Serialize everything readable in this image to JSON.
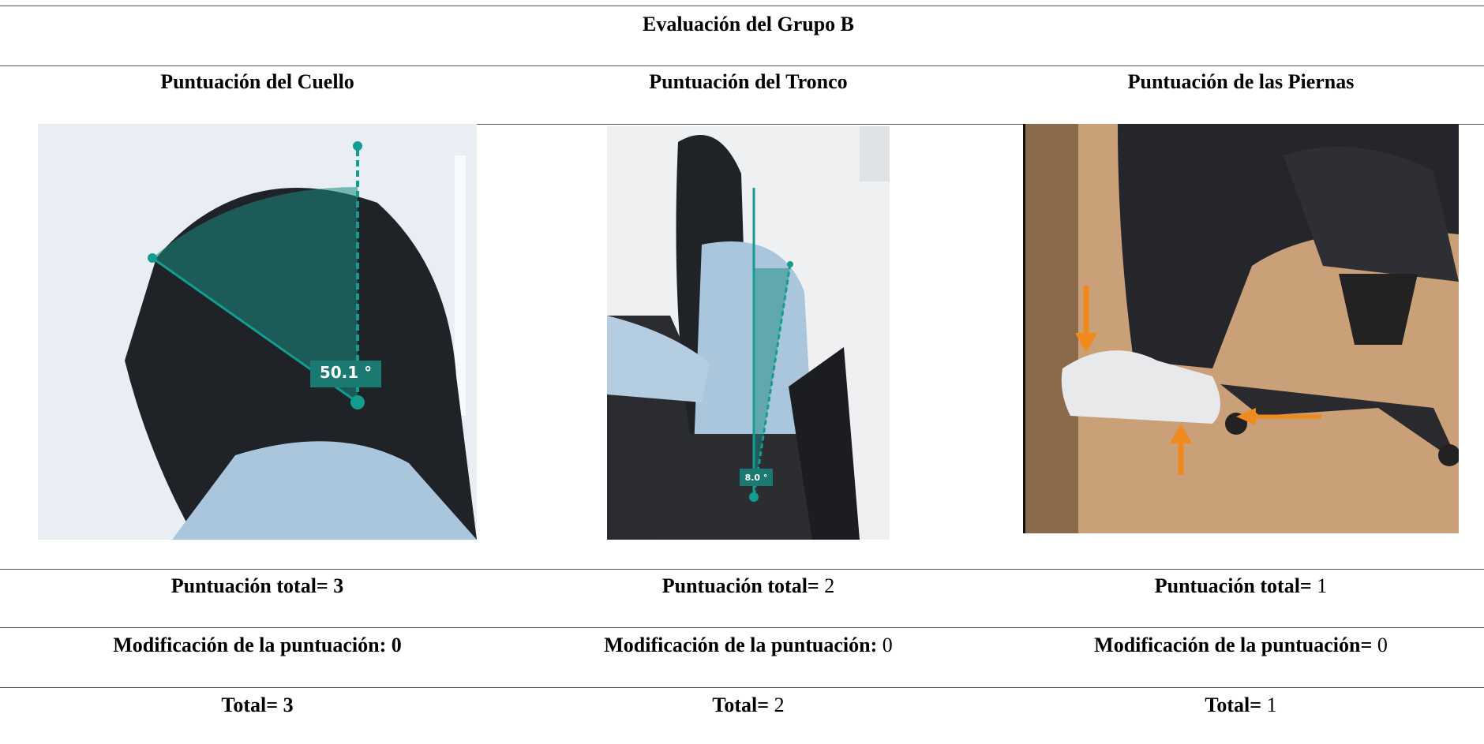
{
  "table": {
    "title": "Evaluación del Grupo B",
    "columns": [
      {
        "header": "Puntuación del Cuello",
        "image_label": "50.1 °",
        "total_score": {
          "label": "Puntuación total=",
          "value": "3",
          "value_bold": true
        },
        "modification": {
          "label": "Modificación de la puntuación:",
          "value": "0",
          "value_bold": true
        },
        "total": {
          "label": "Total=",
          "value": "3",
          "value_bold": true
        }
      },
      {
        "header": "Puntuación del Tronco",
        "image_label": "8.0 °",
        "total_score": {
          "label": "Puntuación total=",
          "value": "2",
          "value_bold": false
        },
        "modification": {
          "label": "Modificación de la puntuación:",
          "value": "0",
          "value_bold": false
        },
        "total": {
          "label": "Total=",
          "value": "2",
          "value_bold": false
        }
      },
      {
        "header": "Puntuación de las Piernas",
        "total_score": {
          "label": "Puntuación total=",
          "value": "1",
          "value_bold": false
        },
        "modification": {
          "label": "Modificación de la puntuación=",
          "value": "0",
          "value_bold": false
        },
        "total": {
          "label": "Total=",
          "value": "1",
          "value_bold": false
        }
      }
    ]
  }
}
